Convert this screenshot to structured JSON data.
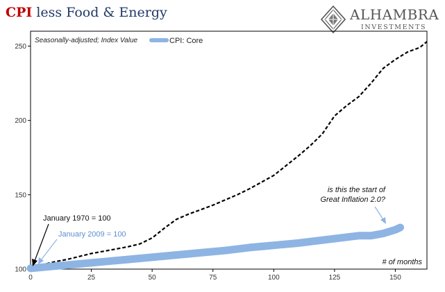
{
  "header": {
    "title_accent": "CPI",
    "title_rest": "less Food & Energy"
  },
  "logo": {
    "name": "ALHAMBRA",
    "subtitle": "INVESTMENTS"
  },
  "chart_data": {
    "type": "line",
    "note": "Seasonally-adjusted; Index Value",
    "xlabel": "# of months",
    "ylabel": "",
    "xlim": [
      0,
      163
    ],
    "ylim": [
      100,
      260
    ],
    "xticks": [
      0,
      25,
      50,
      75,
      100,
      125,
      150
    ],
    "yticks": [
      100,
      150,
      200,
      250
    ],
    "legend": {
      "position": "top-center"
    },
    "colors": {
      "core_2009": "#8eb4e3",
      "core_1970": "#000000"
    },
    "series": [
      {
        "name": "CPI: Core",
        "style": "thick-solid",
        "x": [
          0,
          10,
          20,
          30,
          40,
          50,
          60,
          70,
          80,
          90,
          100,
          110,
          120,
          125,
          130,
          135,
          140,
          145,
          150,
          152
        ],
        "y": [
          100.5,
          102,
          103.5,
          105,
          106.5,
          108,
          109.5,
          111,
          112.5,
          114.5,
          116,
          117.5,
          119.5,
          120.5,
          121.5,
          122.5,
          122.5,
          124,
          126.5,
          128
        ]
      },
      {
        "name": "",
        "style": "dashed",
        "x": [
          0,
          5,
          10,
          15,
          20,
          25,
          30,
          35,
          40,
          45,
          50,
          55,
          60,
          65,
          70,
          75,
          80,
          85,
          90,
          95,
          100,
          105,
          110,
          115,
          120,
          125,
          130,
          135,
          140,
          145,
          150,
          155,
          160,
          163
        ],
        "y": [
          100,
          103,
          105,
          106.5,
          108.5,
          110.5,
          112,
          113.5,
          115,
          117,
          121,
          127.5,
          133.5,
          137,
          140,
          143,
          146.5,
          150,
          154,
          158.5,
          163,
          169.5,
          176,
          183,
          191,
          203,
          210,
          216,
          225,
          235,
          241,
          246,
          249,
          253
        ]
      }
    ],
    "annotations": [
      {
        "text": "January 1970 = 100",
        "x": 2,
        "y": 101,
        "color": "#000000"
      },
      {
        "text": "January 2009 = 100",
        "x": 3,
        "y": 102,
        "color": "#5b8fd0"
      },
      {
        "text": "is this the start of",
        "x": 148,
        "y": 128,
        "color": "#000000"
      },
      {
        "text": "Great Inflation 2.0?",
        "x": 148,
        "y": 128,
        "color": "#000000"
      }
    ]
  }
}
